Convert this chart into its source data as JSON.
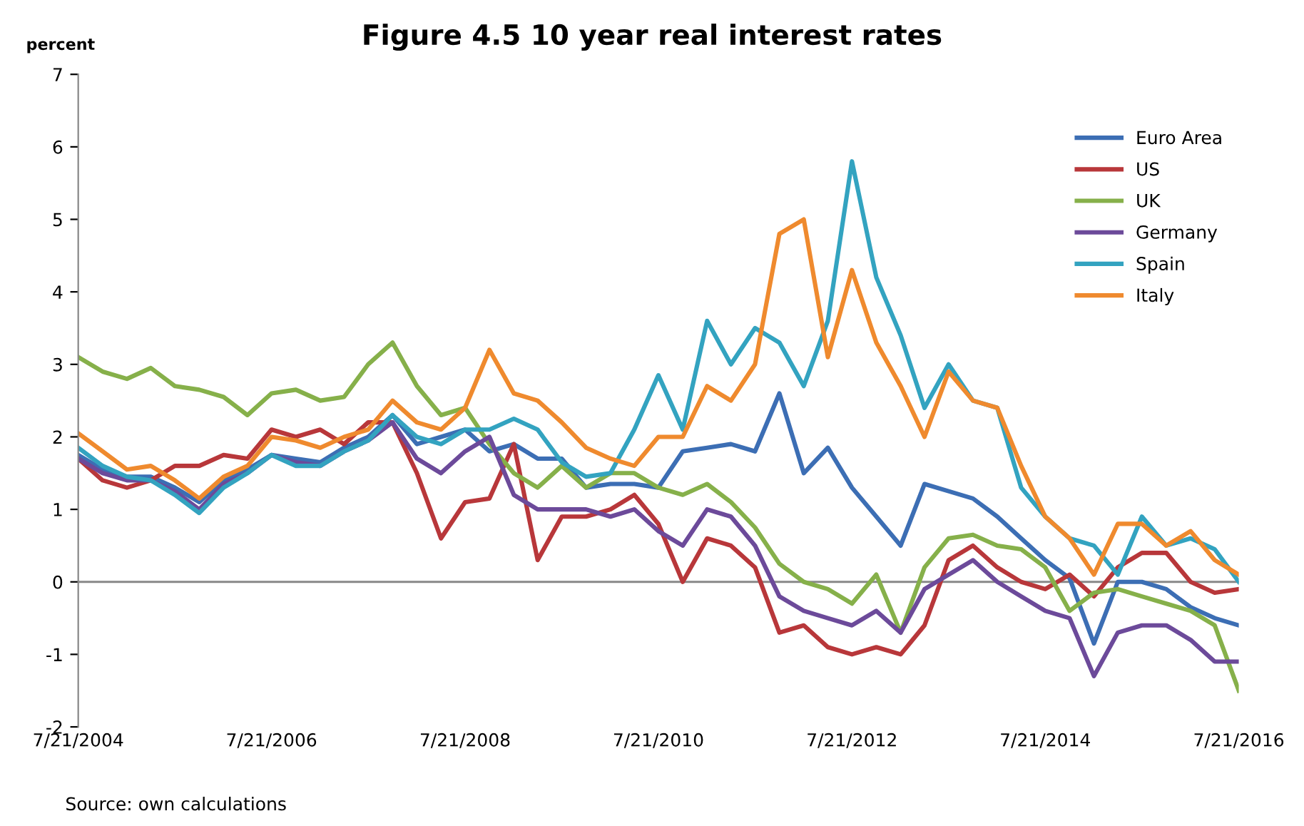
{
  "chart_data": {
    "type": "line",
    "title": "Figure 4.5 10 year real interest rates",
    "ylabel": "percent",
    "annotations": [
      "Source: own calculations"
    ],
    "x": [
      "2004-07-21",
      "2004-10-21",
      "2005-01-21",
      "2005-04-21",
      "2005-07-21",
      "2005-10-21",
      "2006-01-21",
      "2006-04-21",
      "2006-07-21",
      "2006-10-21",
      "2007-01-21",
      "2007-04-21",
      "2007-07-21",
      "2007-10-21",
      "2008-01-21",
      "2008-04-21",
      "2008-07-21",
      "2008-10-21",
      "2009-01-21",
      "2009-04-21",
      "2009-07-21",
      "2009-10-21",
      "2010-01-21",
      "2010-04-21",
      "2010-07-21",
      "2010-10-21",
      "2011-01-21",
      "2011-04-21",
      "2011-07-21",
      "2011-10-21",
      "2012-01-21",
      "2012-04-21",
      "2012-07-21",
      "2012-10-21",
      "2013-01-21",
      "2013-04-21",
      "2013-07-21",
      "2013-10-21",
      "2014-01-21",
      "2014-04-21",
      "2014-07-21",
      "2014-10-21",
      "2015-01-21",
      "2015-04-21",
      "2015-07-21",
      "2015-10-21",
      "2016-01-21",
      "2016-04-21",
      "2016-07-21"
    ],
    "series": [
      {
        "name": "Euro Area",
        "color": "#3c6eb4",
        "values": [
          1.75,
          1.55,
          1.45,
          1.45,
          1.3,
          1.1,
          1.4,
          1.55,
          1.75,
          1.7,
          1.65,
          1.85,
          2.0,
          2.3,
          1.9,
          2.0,
          2.1,
          1.8,
          1.9,
          1.7,
          1.7,
          1.3,
          1.35,
          1.35,
          1.3,
          1.8,
          1.85,
          1.9,
          1.8,
          2.6,
          1.5,
          1.85,
          1.3,
          0.9,
          0.5,
          1.35,
          1.25,
          1.15,
          0.9,
          0.6,
          0.3,
          0.05,
          -0.85,
          0.0,
          0.0,
          -0.1,
          -0.35,
          -0.5,
          -0.6
        ]
      },
      {
        "name": "US",
        "color": "#b8373a",
        "values": [
          1.7,
          1.4,
          1.3,
          1.4,
          1.6,
          1.6,
          1.75,
          1.7,
          2.1,
          2.0,
          2.1,
          1.9,
          2.2,
          2.2,
          1.5,
          0.6,
          1.1,
          1.15,
          1.9,
          0.3,
          0.9,
          0.9,
          1.0,
          1.2,
          0.8,
          0.0,
          0.6,
          0.5,
          0.2,
          -0.7,
          -0.6,
          -0.9,
          -1.0,
          -0.9,
          -1.0,
          -0.6,
          0.3,
          0.5,
          0.2,
          0.0,
          -0.1,
          0.1,
          -0.2,
          0.2,
          0.4,
          0.4,
          0.0,
          -0.15,
          -0.1
        ]
      },
      {
        "name": "UK",
        "color": "#86b04a",
        "values": [
          3.1,
          2.9,
          2.8,
          2.95,
          2.7,
          2.65,
          2.55,
          2.3,
          2.6,
          2.65,
          2.5,
          2.55,
          3.0,
          3.3,
          2.7,
          2.3,
          2.4,
          1.9,
          1.5,
          1.3,
          1.6,
          1.3,
          1.5,
          1.5,
          1.3,
          1.2,
          1.35,
          1.1,
          0.75,
          0.25,
          0.0,
          -0.1,
          -0.3,
          0.1,
          -0.7,
          0.2,
          0.6,
          0.65,
          0.5,
          0.45,
          0.2,
          -0.4,
          -0.15,
          -0.1,
          -0.2,
          -0.3,
          -0.4,
          -0.6,
          -1.5
        ]
      },
      {
        "name": "Germany",
        "color": "#6c4a9a",
        "values": [
          1.7,
          1.5,
          1.4,
          1.4,
          1.25,
          1.0,
          1.35,
          1.5,
          1.75,
          1.65,
          1.6,
          1.8,
          1.95,
          2.2,
          1.7,
          1.5,
          1.8,
          2.0,
          1.2,
          1.0,
          1.0,
          1.0,
          0.9,
          1.0,
          0.7,
          0.5,
          1.0,
          0.9,
          0.5,
          -0.2,
          -0.4,
          -0.5,
          -0.6,
          -0.4,
          -0.7,
          -0.1,
          0.1,
          0.3,
          0.0,
          -0.2,
          -0.4,
          -0.5,
          -1.3,
          -0.7,
          -0.6,
          -0.6,
          -0.8,
          -1.1,
          -1.1
        ]
      },
      {
        "name": "Spain",
        "color": "#33a3c0",
        "values": [
          1.85,
          1.6,
          1.45,
          1.4,
          1.2,
          0.95,
          1.3,
          1.5,
          1.75,
          1.6,
          1.6,
          1.8,
          1.95,
          2.3,
          2.0,
          1.9,
          2.1,
          2.1,
          2.25,
          2.1,
          1.65,
          1.45,
          1.5,
          2.1,
          2.85,
          2.1,
          3.6,
          3.0,
          3.5,
          3.3,
          2.7,
          3.6,
          5.8,
          4.2,
          3.4,
          2.4,
          3.0,
          2.5,
          2.4,
          1.3,
          0.9,
          0.6,
          0.5,
          0.1,
          0.9,
          0.5,
          0.6,
          0.45,
          0.0
        ]
      },
      {
        "name": "Italy",
        "color": "#ef8a2e",
        "values": [
          2.05,
          1.8,
          1.55,
          1.6,
          1.4,
          1.15,
          1.45,
          1.6,
          2.0,
          1.95,
          1.85,
          2.0,
          2.1,
          2.5,
          2.2,
          2.1,
          2.4,
          3.2,
          2.6,
          2.5,
          2.2,
          1.85,
          1.7,
          1.6,
          2.0,
          2.0,
          2.7,
          2.5,
          3.0,
          4.8,
          5.0,
          3.1,
          4.3,
          3.3,
          2.7,
          2.0,
          2.9,
          2.5,
          2.4,
          1.6,
          0.9,
          0.6,
          0.1,
          0.8,
          0.8,
          0.5,
          0.7,
          0.3,
          0.1
        ]
      }
    ],
    "xlim": [
      "2004-07-21",
      "2016-07-21"
    ],
    "xticks": [
      {
        "value": "2004-07-21",
        "label": "7/21/2004"
      },
      {
        "value": "2006-07-21",
        "label": "7/21/2006"
      },
      {
        "value": "2008-07-21",
        "label": "7/21/2008"
      },
      {
        "value": "2010-07-21",
        "label": "7/21/2010"
      },
      {
        "value": "2012-07-21",
        "label": "7/21/2012"
      },
      {
        "value": "2014-07-21",
        "label": "7/21/2014"
      },
      {
        "value": "2016-07-21",
        "label": "7/21/2016"
      }
    ],
    "ylim": [
      -2,
      7
    ],
    "yticks": [
      -2,
      -1,
      0,
      1,
      2,
      3,
      4,
      5,
      6,
      7
    ],
    "ref_lines": [
      {
        "axis": "y",
        "value": 0,
        "color": "#888888"
      }
    ],
    "legend": "right",
    "grid": false,
    "line_style": "solid",
    "marker": "none"
  }
}
